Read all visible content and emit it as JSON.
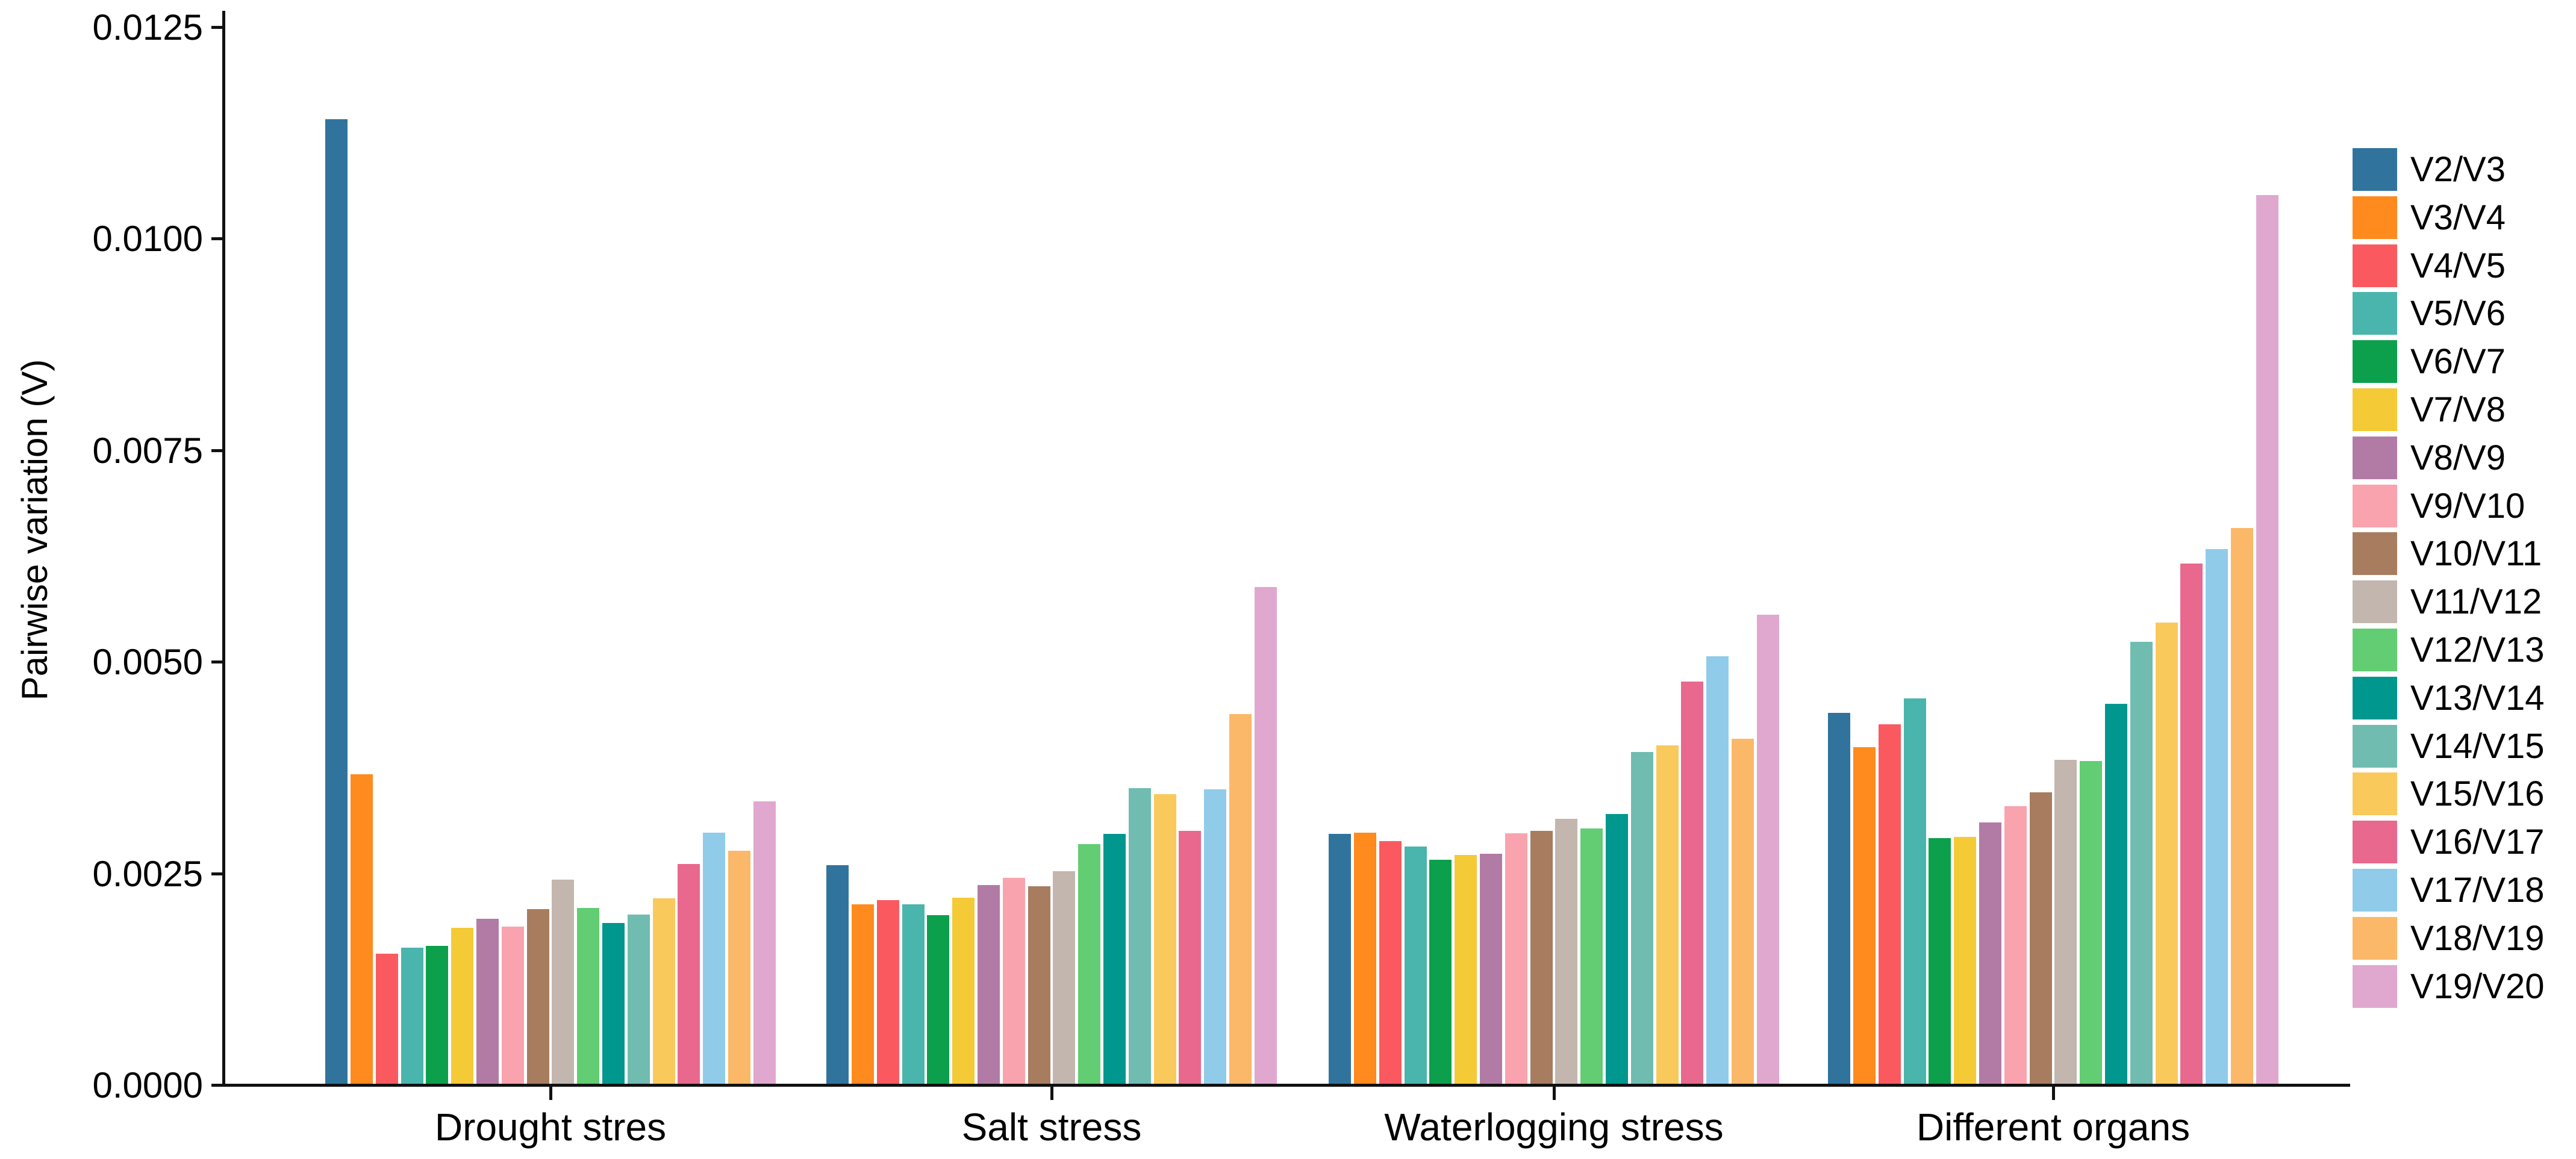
{
  "chart_data": {
    "type": "bar",
    "title": "",
    "xlabel": "",
    "ylabel": "Pairwise variation (V)",
    "ylim": [
      0,
      0.0125
    ],
    "ytick_labels": [
      "0.0125",
      "0.0100",
      "0.0075",
      "0.0050",
      "0.0025",
      "0.0000"
    ],
    "ytick_values": [
      0.0125,
      0.01,
      0.0075,
      0.005,
      0.0025,
      0.0
    ],
    "categories": [
      "Drought stres",
      "Salt stress",
      "Waterlogging stress",
      "Different organs"
    ],
    "grid": false,
    "legend_position": "right",
    "series": [
      {
        "name": "V2/V3",
        "color": "#30749E",
        "values": [
          0.0114,
          0.00258,
          0.00295,
          0.00438
        ]
      },
      {
        "name": "V3/V4",
        "color": "#FF8A1E",
        "values": [
          0.00366,
          0.00212,
          0.00297,
          0.00398
        ]
      },
      {
        "name": "V4/V5",
        "color": "#FA5A5F",
        "values": [
          0.00154,
          0.00217,
          0.00287,
          0.00425
        ]
      },
      {
        "name": "V5/V6",
        "color": "#4AB5AC",
        "values": [
          0.00161,
          0.00212,
          0.0028,
          0.00455
        ]
      },
      {
        "name": "V6/V7",
        "color": "#0CA04C",
        "values": [
          0.00163,
          0.00199,
          0.00265,
          0.0029
        ]
      },
      {
        "name": "V7/V8",
        "color": "#F4CA37",
        "values": [
          0.00184,
          0.0022,
          0.0027,
          0.00292
        ]
      },
      {
        "name": "V8/V9",
        "color": "#B27BA6",
        "values": [
          0.00195,
          0.00235,
          0.00272,
          0.00309
        ]
      },
      {
        "name": "V9/V10",
        "color": "#F9A3AE",
        "values": [
          0.00186,
          0.00243,
          0.00296,
          0.00328
        ]
      },
      {
        "name": "V10/V11",
        "color": "#A87C5F",
        "values": [
          0.00206,
          0.00233,
          0.00299,
          0.00344
        ]
      },
      {
        "name": "V11/V12",
        "color": "#C2B6AF",
        "values": [
          0.00241,
          0.00251,
          0.00313,
          0.00383
        ]
      },
      {
        "name": "V12/V13",
        "color": "#62CD72",
        "values": [
          0.00208,
          0.00283,
          0.00302,
          0.00381
        ]
      },
      {
        "name": "V13/V14",
        "color": "#00978F",
        "values": [
          0.0019,
          0.00295,
          0.00319,
          0.00449
        ]
      },
      {
        "name": "V14/V15",
        "color": "#70BCB1",
        "values": [
          0.002,
          0.00349,
          0.00392,
          0.00522
        ]
      },
      {
        "name": "V15/V16",
        "color": "#F9C95C",
        "values": [
          0.00219,
          0.00342,
          0.004,
          0.00545
        ]
      },
      {
        "name": "V16/V17",
        "color": "#E8698D",
        "values": [
          0.0026,
          0.00299,
          0.00475,
          0.00615
        ]
      },
      {
        "name": "V17/V18",
        "color": "#90CBEA",
        "values": [
          0.00297,
          0.00348,
          0.00505,
          0.00632
        ]
      },
      {
        "name": "V18/V19",
        "color": "#FBB869",
        "values": [
          0.00275,
          0.00437,
          0.00408,
          0.00657
        ]
      },
      {
        "name": "V19/V20",
        "color": "#E0A8CF",
        "values": [
          0.00334,
          0.00587,
          0.00554,
          0.0105
        ]
      }
    ]
  }
}
